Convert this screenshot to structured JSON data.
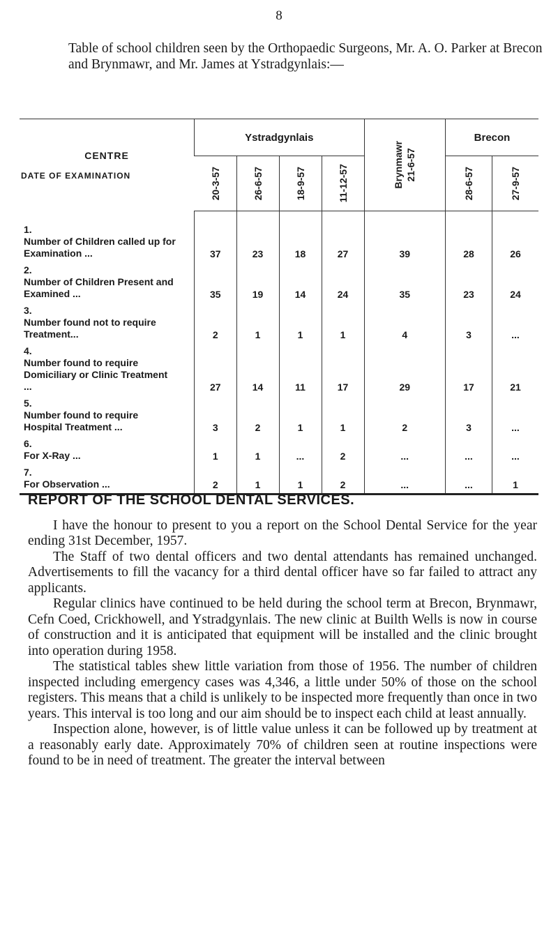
{
  "page_number": "8",
  "intro": "Table of school children seen by the Orthopaedic Surgeons, Mr. A. O. Parker at Brecon and Brynmawr, and Mr. James at Ystradgynlais:—",
  "table": {
    "centre_header": "CENTRE",
    "date_header": "Date of Examination",
    "groups": [
      {
        "name": "Ystradgynlais",
        "dates": [
          "20-3-57",
          "26-6-57",
          "18-9-57",
          "11-12-57"
        ]
      },
      {
        "name": "Brynmawr",
        "dates": [
          "21-6-57"
        ]
      },
      {
        "name": "Brecon",
        "dates": [
          "28-6-57",
          "27-9-57"
        ]
      }
    ],
    "rows": [
      {
        "number": "1.",
        "label": "Number of Children called up for Examination ...",
        "values": [
          "37",
          "23",
          "18",
          "27",
          "39",
          "28",
          "26"
        ]
      },
      {
        "number": "2.",
        "label": "Number of Children Present and Examined ...",
        "values": [
          "35",
          "19",
          "14",
          "24",
          "35",
          "23",
          "24"
        ]
      },
      {
        "number": "3.",
        "label": "Number found not to require Treatment...",
        "values": [
          "2",
          "1",
          "1",
          "1",
          "4",
          "3",
          "..."
        ]
      },
      {
        "number": "4.",
        "label": "Number found to require Domiciliary or Clinic Treatment ...",
        "values": [
          "27",
          "14",
          "11",
          "17",
          "29",
          "17",
          "21"
        ]
      },
      {
        "number": "5.",
        "label": "Number found to require Hospital Treatment ...",
        "values": [
          "3",
          "2",
          "1",
          "1",
          "2",
          "3",
          "..."
        ]
      },
      {
        "number": "6.",
        "label": "For X-Ray ...",
        "values": [
          "1",
          "1",
          "...",
          "2",
          "...",
          "...",
          "..."
        ]
      },
      {
        "number": "7.",
        "label": "For Observation ...",
        "values": [
          "2",
          "1",
          "1",
          "2",
          "...",
          "...",
          "1"
        ]
      }
    ]
  },
  "report": {
    "heading": "REPORT OF THE SCHOOL DENTAL SERVICES.",
    "paragraphs": [
      "I have the honour to present to you a report on the School Dental Service for the year ending 31st December, 1957.",
      "The Staff of two dental officers and two dental attendants has remained unchanged. Advertisements to fill the vacancy for a third dental officer have so far failed to attract any applicants.",
      "Regular clinics have continued to be held during the school term at Brecon, Brynmawr, Cefn Coed, Crickhowell, and Ystradgynlais. The new clinic at Builth Wells is now in course of construction and it is anticipated that equipment will be installed and the clinic brought into operation during 1958.",
      "The statistical tables shew little variation from those of 1956. The number of children inspected including emergency cases was 4,346, a little under 50% of those on the school registers. This means that a child is unlikely to be inspected more frequently than once in two years. This interval is too long and our aim should be to inspect each child at least annually.",
      "Inspection alone, however, is of little value unless it can be followed up by treatment at a reasonably early date. Approximately 70% of children seen at routine inspections were found to be in need of treatment. The greater the interval between"
    ]
  }
}
